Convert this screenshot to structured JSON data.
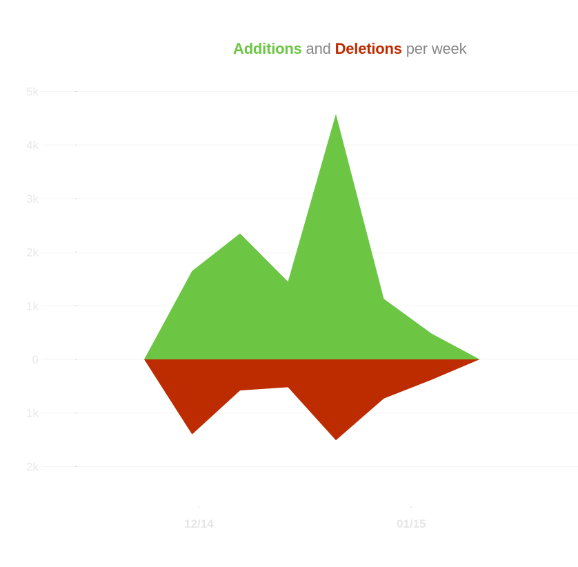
{
  "title": {
    "part1": "Additions",
    "part2": " and ",
    "part3": "Deletions",
    "part4": " per week"
  },
  "colors": {
    "additions": "#6cc644",
    "deletions": "#bd2c00",
    "grid": "#f3f3f3",
    "tick_text": "#e8e8e8"
  },
  "chart_data": {
    "type": "area",
    "title": "Additions and Deletions per week",
    "xlabel": "",
    "ylabel": "",
    "x_ticks": [
      "12/14",
      "01/15"
    ],
    "y_ticks": [
      {
        "value": 5000,
        "label": "5k"
      },
      {
        "value": 4000,
        "label": "4k"
      },
      {
        "value": 3000,
        "label": "3k"
      },
      {
        "value": 2000,
        "label": "2k"
      },
      {
        "value": 1000,
        "label": "1k"
      },
      {
        "value": 0,
        "label": "0"
      },
      {
        "value": -1000,
        "label": "1k"
      },
      {
        "value": -2000,
        "label": "2k"
      }
    ],
    "ylim": [
      -2000,
      5000
    ],
    "grid": true,
    "x": [
      "2014-11-23",
      "2014-11-30",
      "2014-12-07",
      "2014-12-14",
      "2014-12-21",
      "2014-12-28",
      "2015-01-04",
      "2015-01-11"
    ],
    "series": [
      {
        "name": "Additions",
        "values": [
          0,
          1650,
          2350,
          1450,
          4580,
          1130,
          480,
          0
        ]
      },
      {
        "name": "Deletions",
        "values": [
          0,
          -1400,
          -580,
          -520,
          -1510,
          -730,
          -380,
          0
        ]
      }
    ]
  }
}
